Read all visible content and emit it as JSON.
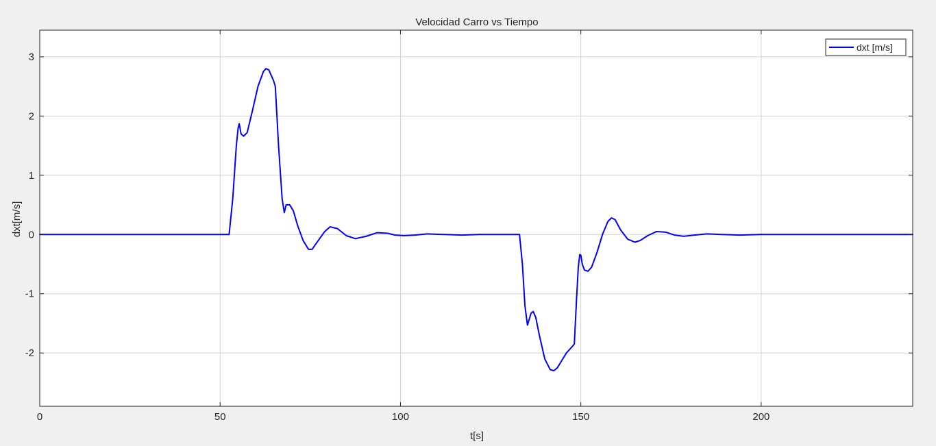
{
  "chart_data": {
    "type": "line",
    "title": "Velocidad Carro vs Tiempo",
    "xlabel": "t[s]",
    "ylabel": "dxt[m/s]",
    "xlim": [
      0,
      242
    ],
    "ylim": [
      -2.9,
      3.45
    ],
    "xticks": [
      0,
      50,
      100,
      150,
      200
    ],
    "yticks": [
      -2,
      -1,
      0,
      1,
      2,
      3
    ],
    "grid": true,
    "legend_position": "top-right",
    "colors": {
      "background": "#f0f0f0",
      "plot_area": "#ffffff",
      "grid": "#d0d0d0",
      "series": "#0000ff"
    },
    "series": [
      {
        "name": "dxt [m/s]",
        "x": [
          0,
          52.5,
          53.5,
          54.5,
          55.0,
          55.3,
          55.8,
          56.5,
          57.5,
          59,
          60.5,
          62,
          62.7,
          63.5,
          64.8,
          65.3,
          66.2,
          67.2,
          67.8,
          68.3,
          69.3,
          70.3,
          71.5,
          73,
          74.5,
          75.5,
          77,
          79,
          80.5,
          82.5,
          85,
          87.5,
          90.5,
          93.5,
          96.5,
          98.5,
          101,
          104,
          107.5,
          112,
          117,
          122,
          127,
          133,
          133.8,
          134.5,
          135.2,
          135.6,
          136.2,
          136.8,
          137.5,
          138.5,
          140,
          141.5,
          142.5,
          143.5,
          144.5,
          146,
          147.5,
          148.2,
          148.8,
          149.3,
          149.7,
          150.0,
          150.4,
          151,
          152,
          153,
          154.5,
          156,
          157.5,
          158.5,
          159.5,
          161,
          163,
          165,
          166.5,
          168.5,
          171,
          173.5,
          176,
          178.5,
          181.5,
          185,
          189,
          194,
          200,
          210,
          242
        ],
        "values": [
          0,
          0,
          0.6,
          1.5,
          1.8,
          1.87,
          1.7,
          1.66,
          1.72,
          2.1,
          2.5,
          2.75,
          2.8,
          2.78,
          2.6,
          2.5,
          1.5,
          0.6,
          0.37,
          0.5,
          0.5,
          0.4,
          0.15,
          -0.1,
          -0.25,
          -0.25,
          -0.12,
          0.05,
          0.13,
          0.1,
          -0.02,
          -0.07,
          -0.03,
          0.03,
          0.02,
          -0.01,
          -0.02,
          -0.01,
          0.01,
          0.0,
          -0.01,
          0.0,
          0.0,
          0.0,
          -0.5,
          -1.2,
          -1.53,
          -1.45,
          -1.33,
          -1.3,
          -1.4,
          -1.7,
          -2.1,
          -2.28,
          -2.3,
          -2.25,
          -2.15,
          -2.0,
          -1.9,
          -1.85,
          -1.1,
          -0.55,
          -0.34,
          -0.35,
          -0.5,
          -0.6,
          -0.62,
          -0.55,
          -0.3,
          0.0,
          0.22,
          0.28,
          0.25,
          0.08,
          -0.08,
          -0.13,
          -0.1,
          -0.02,
          0.05,
          0.04,
          -0.01,
          -0.03,
          -0.01,
          0.01,
          0.0,
          -0.01,
          0.0,
          0.0,
          0.0
        ]
      }
    ]
  }
}
